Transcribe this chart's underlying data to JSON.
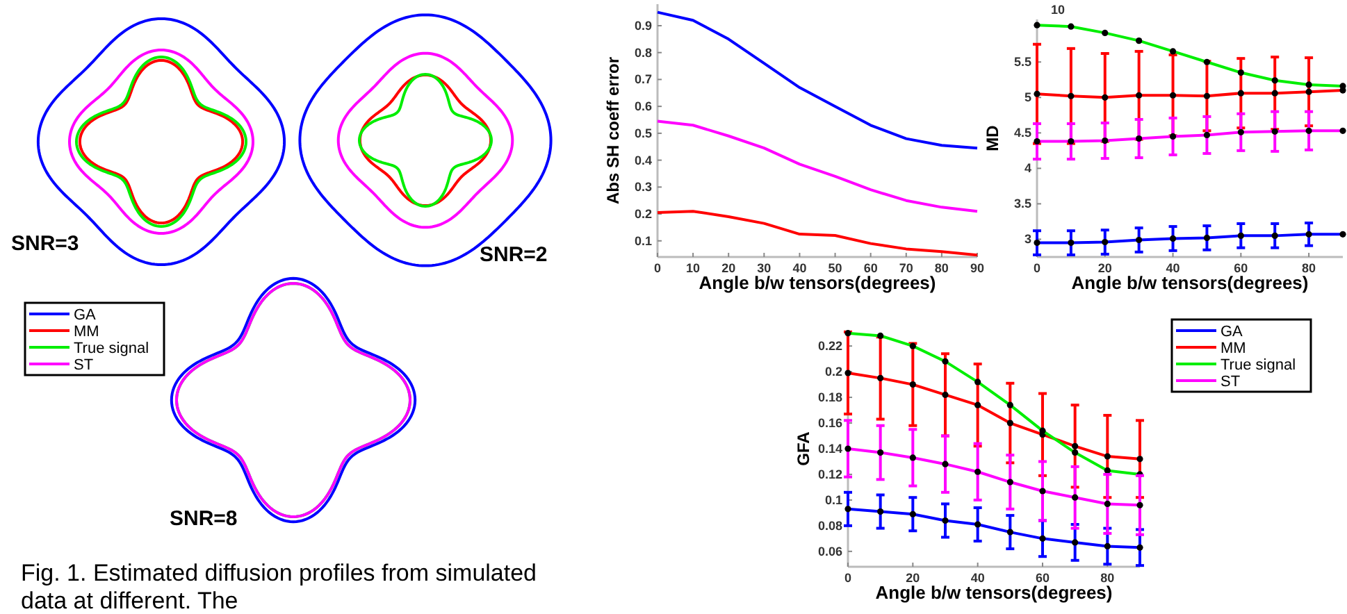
{
  "chart_data": [
    {
      "type": "other",
      "legend": "left",
      "series": [
        {
          "name": "GA",
          "color": "#0000ff"
        },
        {
          "name": "MM",
          "color": "#ff0000"
        },
        {
          "name": "True signal",
          "color": "#00ee00"
        },
        {
          "name": "ST",
          "color": "#ff00ff"
        }
      ],
      "annotations": [
        "SNR=3",
        "SNR=2",
        "SNR=8",
        "Fig. 1. Estimated diffusion profiles from simulated data at different. The"
      ]
    },
    {
      "type": "line",
      "xlabel": "Angle b/w tensors(degrees)",
      "ylabel": "Abs SH coeff error",
      "x": [
        0,
        10,
        20,
        30,
        40,
        50,
        60,
        70,
        80,
        90
      ],
      "xlim": [
        0,
        90
      ],
      "xticks": [
        0,
        10,
        20,
        30,
        40,
        50,
        60,
        70,
        80,
        90
      ],
      "ylim": [
        0.04,
        0.98
      ],
      "yticks": [
        0.1,
        0.2,
        0.3,
        0.4,
        0.5,
        0.6,
        0.7,
        0.8,
        0.9
      ],
      "series": [
        {
          "color": "#0000ff",
          "values": [
            0.95,
            0.92,
            0.85,
            0.76,
            0.67,
            0.6,
            0.53,
            0.48,
            0.455,
            0.445
          ]
        },
        {
          "color": "#ff00ff",
          "values": [
            0.545,
            0.53,
            0.49,
            0.445,
            0.385,
            0.34,
            0.29,
            0.25,
            0.225,
            0.21
          ]
        },
        {
          "color": "#ff0000",
          "values": [
            0.205,
            0.21,
            0.19,
            0.165,
            0.125,
            0.12,
            0.09,
            0.07,
            0.06,
            0.047
          ]
        }
      ]
    },
    {
      "type": "line",
      "xlabel": "Angle b/w tensors(degrees)",
      "ylabel": "MD",
      "marker": "circle",
      "annotations": [
        "10"
      ],
      "x": [
        0,
        10,
        20,
        30,
        40,
        50,
        60,
        70,
        80,
        90
      ],
      "xlim": [
        0,
        90
      ],
      "xticks": [
        0,
        20,
        40,
        60,
        80
      ],
      "ylim": [
        2.75,
        6.1
      ],
      "yticks": [
        3,
        3.5,
        4,
        4.5,
        5,
        5.5
      ],
      "series": [
        {
          "color": "#0000ff",
          "values": [
            2.95,
            2.95,
            2.96,
            2.99,
            3.01,
            3.02,
            3.05,
            3.05,
            3.07,
            3.07
          ],
          "errors": [
            0.17,
            0.17,
            0.17,
            0.17,
            0.17,
            0.17,
            0.17,
            0.17,
            0.16,
            null
          ]
        },
        {
          "color": "#ff0000",
          "values": [
            5.05,
            5.02,
            5.0,
            5.03,
            5.03,
            5.02,
            5.06,
            5.06,
            5.08,
            5.1
          ],
          "errors": [
            0.7,
            0.67,
            0.62,
            0.62,
            0.57,
            0.49,
            0.49,
            0.51,
            0.48,
            null
          ]
        },
        {
          "color": "#00ee00",
          "values": [
            6.02,
            6.0,
            5.91,
            5.8,
            5.65,
            5.5,
            5.35,
            5.24,
            5.18,
            5.16
          ]
        },
        {
          "color": "#ff00ff",
          "values": [
            4.38,
            4.38,
            4.39,
            4.42,
            4.45,
            4.47,
            4.51,
            4.52,
            4.53,
            4.53
          ],
          "errors": [
            0.25,
            0.25,
            0.25,
            0.27,
            0.26,
            0.26,
            0.26,
            0.28,
            0.27,
            null
          ]
        }
      ]
    },
    {
      "type": "line",
      "xlabel": "Angle b/w tensors(degrees)",
      "ylabel": "GFA",
      "marker": "circle",
      "legend": "top right",
      "x": [
        0,
        10,
        20,
        30,
        40,
        50,
        60,
        70,
        80,
        90
      ],
      "xlim": [
        0,
        90
      ],
      "xticks": [
        0,
        20,
        40,
        60,
        80
      ],
      "ylim": [
        0.048,
        0.232
      ],
      "yticks": [
        0.06,
        0.08,
        0.1,
        0.12,
        0.14,
        0.16,
        0.18,
        0.2,
        0.22
      ],
      "series": [
        {
          "name": "GA",
          "color": "#0000ff",
          "values": [
            0.093,
            0.091,
            0.089,
            0.084,
            0.081,
            0.075,
            0.07,
            0.067,
            0.064,
            0.063
          ],
          "errors": [
            0.013,
            0.013,
            0.013,
            0.013,
            0.013,
            0.013,
            0.014,
            0.014,
            0.014,
            0.014
          ]
        },
        {
          "name": "MM",
          "color": "#ff0000",
          "values": [
            0.199,
            0.195,
            0.19,
            0.182,
            0.174,
            0.16,
            0.151,
            0.142,
            0.134,
            0.132
          ],
          "errors": [
            0.032,
            0.032,
            0.032,
            0.032,
            0.032,
            0.031,
            0.032,
            0.032,
            0.032,
            0.03
          ]
        },
        {
          "name": "True signal",
          "color": "#00ee00",
          "values": [
            0.23,
            0.228,
            0.22,
            0.208,
            0.192,
            0.174,
            0.154,
            0.137,
            0.123,
            0.12
          ]
        },
        {
          "name": "ST",
          "color": "#ff00ff",
          "values": [
            0.14,
            0.137,
            0.133,
            0.128,
            0.122,
            0.114,
            0.107,
            0.102,
            0.097,
            0.096
          ],
          "errors": [
            0.022,
            0.021,
            0.022,
            0.022,
            0.022,
            0.021,
            0.023,
            0.024,
            0.023,
            0.023
          ]
        }
      ]
    }
  ]
}
